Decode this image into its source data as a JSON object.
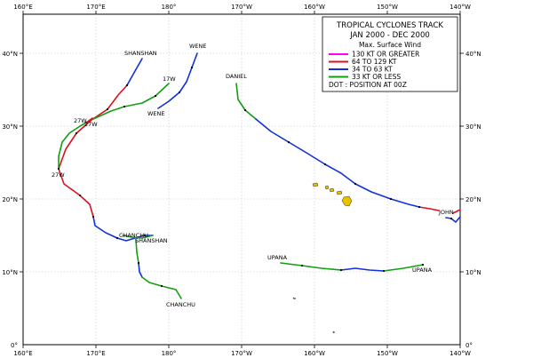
{
  "map": {
    "lon_ticks": [
      "160°E",
      "170°E",
      "180°",
      "170°W",
      "160°W",
      "150°W",
      "140°W"
    ],
    "lat_ticks_left": [
      "0°",
      "10°N",
      "20°N",
      "30°N",
      "40°N"
    ],
    "lat_ticks_right": [
      "0°",
      "10°N",
      "20°N",
      "30°N",
      "40°N"
    ]
  },
  "legend": {
    "title_line1": "TROPICAL CYCLONES TRACK",
    "title_line2": "JAN 2000  -  DEC 2000",
    "wind_heading": "Max. Surface Wind",
    "items": [
      {
        "label": "130 KT OR GREATER",
        "color": "#ff00ff"
      },
      {
        "label": "64 TO 129 KT",
        "color": "#dd1020"
      },
      {
        "label": "34 TO 63 KT",
        "color": "#1030dd"
      },
      {
        "label": "33 KT OR LESS",
        "color": "#10a010"
      }
    ],
    "dot_note": "DOT : POSITION AT 00Z"
  },
  "storms": [
    {
      "name": "SHANSHAN",
      "label_top": "SHANSHAN",
      "label_bottom": "SHANSHAN"
    },
    {
      "name": "27W",
      "label_a": "27W",
      "label_b": "27W",
      "label_c": "27W"
    },
    {
      "name": "WENE",
      "label_top": "WENE",
      "label_bottom": "WENE"
    },
    {
      "name": "17W",
      "label": "17W"
    },
    {
      "name": "DANIEL",
      "label": "DANIEL"
    },
    {
      "name": "JOHN",
      "label": "JOHN"
    },
    {
      "name": "CHANCHU",
      "label_top": "CHANCHU",
      "label_bottom": "CHANCHU"
    },
    {
      "name": "UPANA",
      "label_left": "UPANA",
      "label_right": "UPANA"
    }
  ],
  "colors": {
    "intensity_130": "#ff00ff",
    "intensity_64": "#dd1020",
    "intensity_34": "#1030dd",
    "intensity_33": "#10a010",
    "land": "#e6c200"
  }
}
